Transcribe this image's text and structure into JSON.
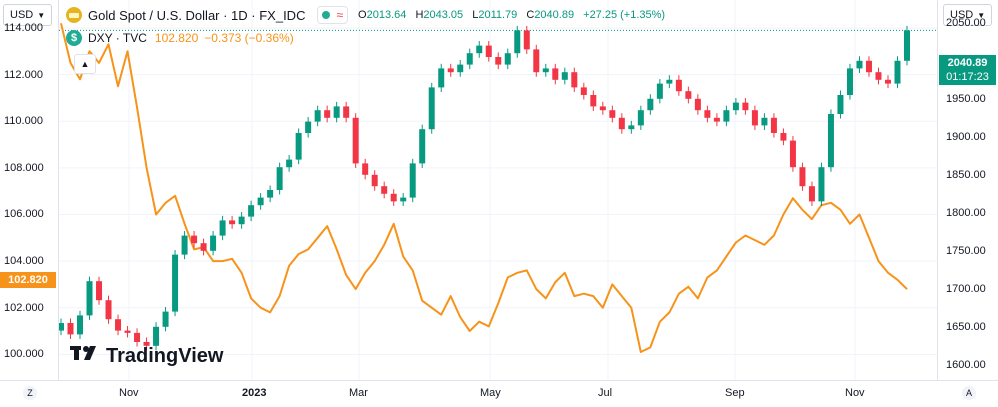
{
  "toolbar": {
    "left_scale": "USD",
    "right_scale": "USD"
  },
  "legend": {
    "main_title": "Gold Spot / U.S. Dollar · 1D · FX_IDC",
    "ohlc": {
      "o_label": "O",
      "o": "2013.64",
      "h_label": "H",
      "h": "2043.05",
      "l_label": "L",
      "l": "2011.79",
      "c_label": "C",
      "c": "2040.89",
      "change": "+27.25 (+1.35%)"
    },
    "dxy_title": "DXY · TVC",
    "dxy_value": "102.820",
    "dxy_change": "−0.373 (−0.36%)",
    "dxy_icon_letter": "$"
  },
  "badges": {
    "gold_price": "2040.89",
    "countdown": "01:17:23",
    "dxy_price": "102.820"
  },
  "logo": {
    "text": "TradingView",
    "mark": "TV"
  },
  "corners": {
    "left": "Z",
    "right": "A"
  },
  "colors": {
    "up": "#089981",
    "down": "#f23645",
    "dxy": "#f7931a",
    "grid": "#f0f3fa"
  },
  "chart_data": {
    "type": "line",
    "left_axis": {
      "ticks": [
        "114.000",
        "112.000",
        "110.000",
        "108.000",
        "106.000",
        "104.000",
        "102.000",
        "100.000"
      ],
      "ylim": [
        98.9,
        115.2
      ]
    },
    "right_axis": {
      "ticks": [
        "2050.00",
        "2000.00",
        "1950.00",
        "1900.00",
        "1850.00",
        "1800.00",
        "1750.00",
        "1700.00",
        "1650.00",
        "1600.00"
      ],
      "ylim": [
        1580,
        2080
      ]
    },
    "x_ticks": [
      {
        "label": "Nov",
        "bold": false
      },
      {
        "label": "2023",
        "bold": true
      },
      {
        "label": "Mar",
        "bold": false
      },
      {
        "label": "May",
        "bold": false
      },
      {
        "label": "Jul",
        "bold": false
      },
      {
        "label": "Sep",
        "bold": false
      },
      {
        "label": "Nov",
        "bold": false
      }
    ],
    "series": [
      {
        "name": "Gold Spot / U.S. Dollar",
        "axis": "right",
        "style": "candles",
        "values": [
          1655,
          1640,
          1665,
          1710,
          1685,
          1660,
          1645,
          1642,
          1630,
          1625,
          1650,
          1670,
          1745,
          1770,
          1760,
          1750,
          1770,
          1790,
          1785,
          1795,
          1810,
          1820,
          1830,
          1860,
          1870,
          1905,
          1920,
          1935,
          1925,
          1940,
          1925,
          1865,
          1850,
          1835,
          1825,
          1815,
          1820,
          1865,
          1910,
          1965,
          1990,
          1985,
          1995,
          2010,
          2020,
          2005,
          1995,
          2010,
          2040,
          2015,
          1985,
          1990,
          1975,
          1985,
          1965,
          1955,
          1940,
          1935,
          1925,
          1910,
          1915,
          1935,
          1950,
          1970,
          1975,
          1960,
          1950,
          1935,
          1925,
          1920,
          1935,
          1945,
          1935,
          1915,
          1925,
          1905,
          1895,
          1860,
          1835,
          1815,
          1860,
          1930,
          1955,
          1990,
          2000,
          1985,
          1975,
          1970,
          2000,
          2040
        ]
      },
      {
        "name": "DXY · TVC",
        "axis": "left",
        "style": "line",
        "values": [
          114.2,
          112.5,
          111.8,
          113.0,
          112.5,
          113.3,
          111.5,
          113.0,
          110.6,
          108.0,
          106.0,
          106.5,
          106.8,
          105.6,
          104.5,
          104.6,
          104.0,
          104.0,
          104.1,
          103.5,
          102.4,
          102.0,
          101.8,
          102.5,
          103.8,
          104.3,
          104.5,
          105.0,
          105.5,
          104.5,
          103.4,
          102.8,
          103.5,
          104.0,
          104.7,
          105.6,
          104.2,
          103.6,
          102.3,
          102.0,
          101.7,
          102.5,
          101.6,
          101.0,
          101.4,
          101.2,
          102.2,
          103.3,
          103.5,
          103.6,
          102.8,
          102.4,
          103.1,
          103.5,
          102.5,
          102.6,
          102.5,
          102.0,
          103.0,
          102.5,
          102.0,
          100.1,
          100.3,
          101.4,
          101.8,
          102.6,
          102.9,
          102.4,
          103.3,
          103.6,
          104.2,
          104.8,
          105.1,
          104.9,
          104.7,
          105.1,
          106.0,
          106.7,
          106.2,
          105.8,
          106.4,
          106.5,
          106.2,
          105.6,
          106.0,
          105.0,
          104.0,
          103.5,
          103.2,
          102.8
        ]
      }
    ]
  }
}
